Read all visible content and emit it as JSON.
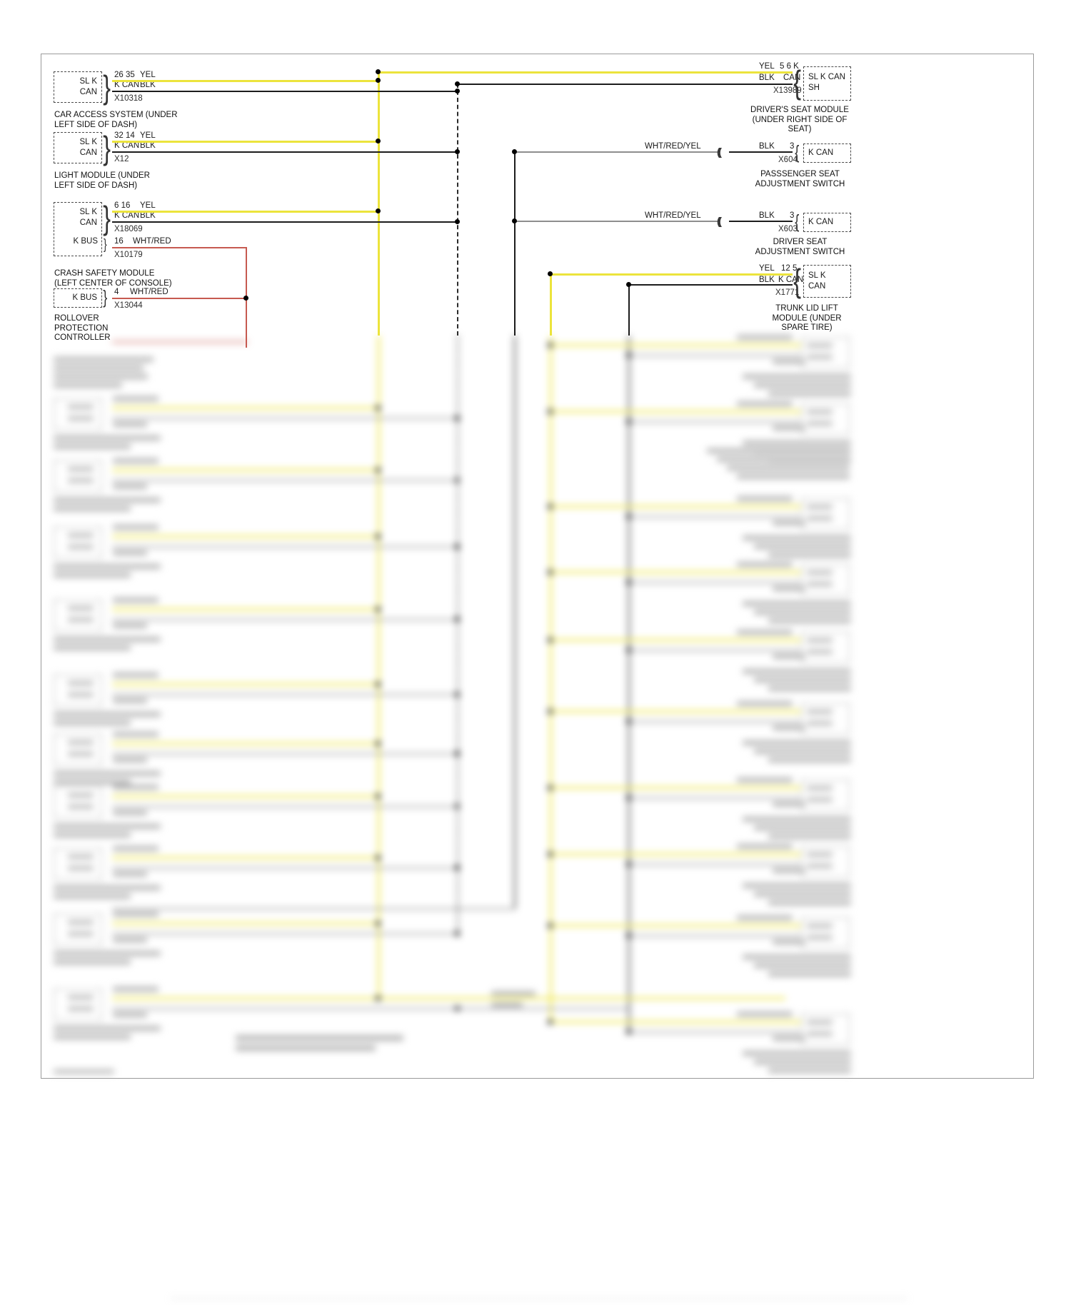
{
  "diagram": {
    "left_modules": [
      {
        "box_lines": [
          "SL K",
          "CAN"
        ],
        "top_pin": "26 35",
        "top_color": "YEL",
        "mid_pin": "K CAN",
        "mid_color": "BLK",
        "connector": "X10318",
        "caption": "CAR ACCESS SYSTEM (UNDER LEFT SIDE OF DASH)"
      },
      {
        "box_lines": [
          "SL K",
          "CAN"
        ],
        "top_pin": "32 14",
        "top_color": "YEL",
        "mid_pin": "K CAN",
        "mid_color": "BLK",
        "connector": "X12",
        "caption": "LIGHT MODULE (UNDER LEFT SIDE OF DASH)"
      },
      {
        "box_lines": [
          "SL K",
          "CAN"
        ],
        "sub_box_label": "K BUS",
        "top_pin": "6 16",
        "top_color": "YEL",
        "mid_pin": "K CAN",
        "mid_color": "BLK",
        "connector": "X18069",
        "sub_pin": "16",
        "sub_color": "WHT/RED",
        "sub_connector": "X10179",
        "caption": "CRASH SAFETY MODULE (LEFT CENTER OF CONSOLE)"
      },
      {
        "box_lines": [
          "K BUS"
        ],
        "top_pin": "4",
        "top_color": "WHT/RED",
        "connector": "X13044",
        "caption": "ROLLOVER PROTECTION CONTROLLER"
      }
    ],
    "right_modules": [
      {
        "box_lines": [
          "SL K CAN",
          "SH"
        ],
        "top_color": "YEL",
        "top_pin": "5 6 K",
        "mid_color": "BLK",
        "mid_pin": "CAN",
        "connector": "X13989",
        "caption": "DRIVER'S SEAT MODULE (UNDER RIGHT SIDE OF SEAT)"
      },
      {
        "box_lines": [
          "K CAN"
        ],
        "wire_label": "WHT/RED/YEL",
        "top_color": "BLK",
        "top_pin": "3",
        "connector": "X604",
        "caption": "PASSSENGER SEAT ADJUSTMENT SWITCH"
      },
      {
        "box_lines": [
          "K CAN"
        ],
        "wire_label": "WHT/RED/YEL",
        "top_color": "BLK",
        "top_pin": "3",
        "connector": "X603",
        "caption": "DRIVER SEAT ADJUSTMENT SWITCH"
      },
      {
        "box_lines": [
          "SL K",
          "CAN"
        ],
        "top_color": "YEL",
        "top_pin": "12 5",
        "mid_color": "BLK",
        "mid_pin": "K CAN",
        "connector": "X1771",
        "caption": "TRUNK LID LIFT MODULE (UNDER SPARE TIRE)"
      }
    ],
    "symbols": {
      "left_brace": "}",
      "right_brace": "{",
      "inline_connector": "(("
    },
    "colors": {
      "yellow_wire": "#ece43c",
      "black_wire": "#1c1c1c",
      "red_wire": "#c65a50",
      "gray_wire": "#8e8e8e"
    }
  }
}
